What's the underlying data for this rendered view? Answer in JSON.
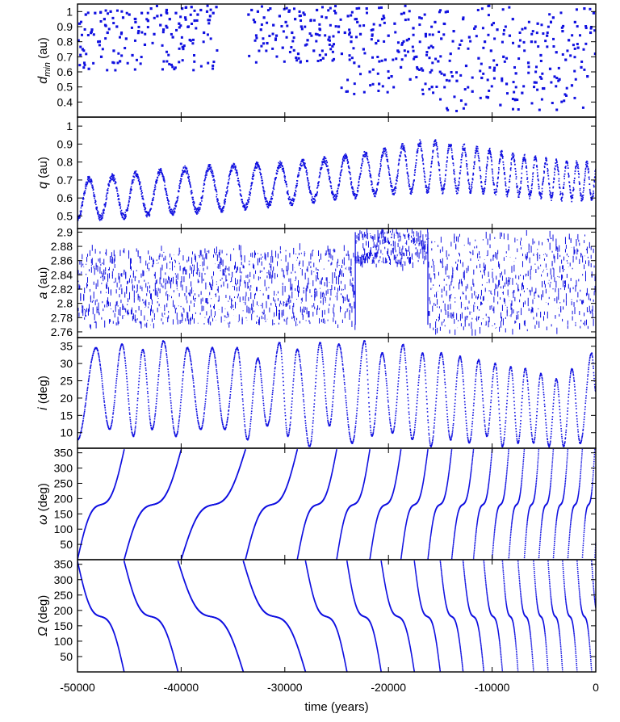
{
  "chart_data": {
    "type": "scatter",
    "color": "#1010e0",
    "x": {
      "label": "time (years)",
      "lim": [
        -50000,
        0
      ],
      "ticks": [
        -50000,
        -40000,
        -30000,
        -20000,
        -10000,
        0
      ],
      "tick_labels": [
        "-50000",
        "-40000",
        "-30000",
        "-20000",
        "-10000",
        "0"
      ]
    },
    "panels": [
      {
        "name": "dmin",
        "ylabel_main": "d",
        "ylabel_sub": "min",
        "ylabel_unit": "(au)",
        "ylim": [
          0.3,
          1.05
        ],
        "ticks": [
          0.4,
          0.5,
          0.6,
          0.7,
          0.8,
          0.9,
          1
        ],
        "tick_labels": [
          "0.4",
          "0.5",
          "0.6",
          "0.7",
          "0.8",
          "0.9",
          "1"
        ],
        "style": "sparse-squares",
        "points": [
          [
            -49800,
            0.92
          ],
          [
            -49500,
            0.75
          ],
          [
            -49200,
            0.98
          ],
          [
            -48900,
            0.62
          ],
          [
            -48600,
            0.88
          ],
          [
            -48300,
            0.99
          ],
          [
            -48000,
            0.8
          ],
          [
            -47700,
            0.7
          ],
          [
            -47400,
            0.95
          ],
          [
            -47100,
            0.86
          ],
          [
            -46800,
            1.0
          ],
          [
            -46500,
            0.74
          ],
          [
            -46200,
            0.9
          ],
          [
            -45900,
            0.67
          ],
          [
            -45600,
            0.96
          ],
          [
            -45300,
            0.82
          ],
          [
            -45000,
            0.98
          ],
          [
            -44700,
            0.71
          ],
          [
            -44400,
            0.93
          ],
          [
            -44100,
            0.87
          ],
          [
            -43800,
            0.99
          ],
          [
            -43500,
            0.78
          ],
          [
            -43200,
            0.94
          ],
          [
            -42900,
            1.02
          ],
          [
            -42600,
            0.85
          ],
          [
            -42300,
            0.97
          ],
          [
            -42000,
            0.91
          ],
          [
            -41700,
            0.88
          ],
          [
            -41400,
            1.01
          ],
          [
            -41100,
            0.95
          ],
          [
            -40800,
            0.83
          ],
          [
            -40500,
            0.99
          ],
          [
            -40200,
            0.92
          ],
          [
            -39900,
            1.02
          ],
          [
            -39600,
            0.96
          ],
          [
            -39300,
            0.9
          ],
          [
            -39000,
            1.03
          ],
          [
            -38700,
            0.94
          ],
          [
            -38400,
            0.98
          ],
          [
            -38100,
            1.01
          ],
          [
            -37800,
            0.86
          ],
          [
            -37500,
            1.0
          ],
          [
            -37200,
            0.97
          ],
          [
            -36900,
            0.99
          ],
          [
            -36600,
            1.03
          ],
          [
            -33500,
            0.98
          ],
          [
            -33200,
            1.01
          ],
          [
            -32900,
            0.93
          ],
          [
            -32600,
            1.0
          ],
          [
            -32300,
            0.88
          ],
          [
            -32000,
            0.96
          ],
          [
            -31700,
            0.79
          ],
          [
            -31400,
            1.02
          ],
          [
            -31100,
            0.91
          ],
          [
            -30800,
            0.84
          ],
          [
            -30500,
            0.97
          ],
          [
            -30200,
            0.76
          ],
          [
            -29900,
            0.93
          ],
          [
            -29600,
            1.0
          ],
          [
            -29300,
            0.86
          ],
          [
            -29000,
            0.95
          ],
          [
            -28700,
            0.72
          ],
          [
            -28400,
            0.9
          ],
          [
            -28100,
            0.98
          ],
          [
            -27800,
            0.81
          ],
          [
            -27500,
            0.94
          ],
          [
            -27200,
            0.74
          ],
          [
            -26900,
            1.01
          ],
          [
            -26600,
            0.88
          ],
          [
            -26300,
            0.69
          ],
          [
            -26000,
            0.96
          ],
          [
            -25700,
            0.83
          ],
          [
            -25400,
            0.77
          ],
          [
            -25100,
            0.99
          ],
          [
            -24800,
            0.9
          ],
          [
            -24500,
            0.72
          ],
          [
            -24200,
            0.86
          ],
          [
            -23900,
            0.97
          ],
          [
            -23600,
            0.8
          ],
          [
            -23300,
            0.66
          ],
          [
            -23000,
            0.93
          ],
          [
            -22700,
            0.85
          ],
          [
            -22400,
            0.75
          ],
          [
            -22100,
            1.02
          ],
          [
            -21800,
            0.6
          ],
          [
            -21500,
            0.88
          ],
          [
            -21200,
            0.79
          ],
          [
            -20900,
            0.52
          ],
          [
            -20600,
            0.95
          ],
          [
            -20300,
            0.68
          ],
          [
            -20000,
            0.84
          ],
          [
            -19700,
            0.57
          ],
          [
            -19400,
            0.92
          ],
          [
            -19100,
            0.74
          ],
          [
            -18800,
            0.63
          ],
          [
            -18500,
            0.99
          ],
          [
            -18200,
            0.81
          ],
          [
            -17900,
            0.55
          ],
          [
            -17600,
            0.89
          ],
          [
            -17300,
            0.7
          ],
          [
            -17000,
            0.96
          ],
          [
            -16700,
            0.61
          ],
          [
            -16400,
            0.85
          ],
          [
            -16100,
            0.76
          ],
          [
            -15800,
            0.5
          ],
          [
            -15500,
            0.93
          ],
          [
            -15200,
            0.67
          ],
          [
            -14900,
            0.82
          ],
          [
            -14600,
            0.58
          ],
          [
            -14300,
            1.0
          ],
          [
            -14000,
            0.72
          ],
          [
            -13700,
            0.87
          ],
          [
            -13400,
            0.54
          ],
          [
            -13100,
            0.78
          ],
          [
            -12800,
            0.95
          ],
          [
            -12500,
            0.64
          ],
          [
            -12200,
            0.83
          ],
          [
            -11900,
            0.47
          ],
          [
            -11600,
            0.9
          ],
          [
            -11300,
            0.69
          ],
          [
            -11000,
            0.56
          ],
          [
            -10700,
            0.8
          ],
          [
            -10400,
            0.43
          ],
          [
            -10100,
            0.74
          ],
          [
            -9800,
            0.61
          ],
          [
            -9500,
            0.88
          ],
          [
            -9200,
            0.38
          ],
          [
            -8900,
            0.7
          ],
          [
            -8600,
            0.52
          ],
          [
            -8300,
            0.84
          ],
          [
            -8000,
            0.95
          ],
          [
            -7700,
            0.59
          ],
          [
            -7400,
            0.77
          ],
          [
            -7100,
            0.46
          ],
          [
            -6800,
            0.89
          ],
          [
            -6500,
            0.66
          ],
          [
            -6200,
            0.8
          ],
          [
            -5900,
            0.53
          ],
          [
            -5600,
            0.92
          ],
          [
            -5300,
            0.71
          ],
          [
            -5000,
            0.49
          ],
          [
            -4700,
            0.84
          ],
          [
            -4400,
            0.62
          ],
          [
            -4100,
            0.96
          ],
          [
            -3800,
            0.73
          ],
          [
            -3500,
            0.55
          ],
          [
            -3200,
            0.87
          ],
          [
            -2900,
            0.68
          ],
          [
            -2600,
            0.81
          ],
          [
            -2300,
            0.51
          ],
          [
            -2000,
            0.93
          ],
          [
            -1700,
            0.76
          ],
          [
            -1400,
            0.63
          ],
          [
            -1100,
            1.02
          ],
          [
            -800,
            0.57
          ],
          [
            -500,
            0.86
          ],
          [
            -200,
            0.99
          ],
          [
            -50,
            0.72
          ]
        ]
      },
      {
        "name": "q",
        "ylabel_main": "q",
        "ylabel_sub": "",
        "ylabel_unit": "(au)",
        "ylim": [
          0.43,
          1.05
        ],
        "ticks": [
          0.5,
          0.6,
          0.7,
          0.8,
          0.9,
          1
        ],
        "tick_labels": [
          "0.5",
          "0.6",
          "0.7",
          "0.8",
          "0.9",
          "1"
        ],
        "style": "oscillation",
        "envelope": {
          "x": [
            -50000,
            -40000,
            -35000,
            -30000,
            -25000,
            -20000,
            -16000,
            -12000,
            -8000,
            -4000,
            0
          ],
          "center": [
            0.59,
            0.64,
            0.66,
            0.68,
            0.71,
            0.75,
            0.78,
            0.76,
            0.73,
            0.7,
            0.69
          ],
          "amp": [
            0.11,
            0.12,
            0.12,
            0.11,
            0.11,
            0.12,
            0.14,
            0.12,
            0.11,
            0.1,
            0.1
          ],
          "period": [
            2200,
            2400,
            2300,
            2200,
            2000,
            1800,
            1500,
            1250,
            1100,
            1000,
            950
          ]
        }
      },
      {
        "name": "a",
        "ylabel_main": "a",
        "ylabel_sub": "",
        "ylabel_unit": "(au)",
        "ylim": [
          2.752,
          2.905
        ],
        "ticks": [
          2.76,
          2.78,
          2.8,
          2.82,
          2.84,
          2.86,
          2.88,
          2.9
        ],
        "tick_labels": [
          "2.76",
          "2.78",
          "2.8",
          "2.82",
          "2.84",
          "2.86",
          "2.88",
          "2.9"
        ],
        "style": "bands",
        "regimes": [
          {
            "x": [
              -50000,
              -23200
            ],
            "ymin": 2.77,
            "ymax": 2.875
          },
          {
            "x": [
              -23200,
              -16200
            ],
            "ymin": 2.855,
            "ymax": 2.9
          },
          {
            "x": [
              -16200,
              0
            ],
            "ymin": 2.762,
            "ymax": 2.895
          }
        ]
      },
      {
        "name": "i",
        "ylabel_main": "i",
        "ylabel_sub": "",
        "ylabel_unit": "(deg)",
        "ylim": [
          5.5,
          37.5
        ],
        "ticks": [
          10,
          15,
          20,
          25,
          30,
          35
        ],
        "tick_labels": [
          "10",
          "15",
          "20",
          "25",
          "30",
          "35"
        ],
        "style": "cycles",
        "peaks": [
          [
            -48200,
            34.5
          ],
          [
            -45700,
            35.5
          ],
          [
            -43700,
            34
          ],
          [
            -41700,
            36.5
          ],
          [
            -39400,
            34.5
          ],
          [
            -37000,
            34.5
          ],
          [
            -34600,
            34.5
          ],
          [
            -32600,
            31.5
          ],
          [
            -30500,
            36
          ],
          [
            -28800,
            34
          ],
          [
            -26600,
            36
          ],
          [
            -24800,
            35.5
          ],
          [
            -22300,
            36.5
          ],
          [
            -20600,
            33
          ],
          [
            -18600,
            35.5
          ],
          [
            -16700,
            33
          ],
          [
            -14900,
            33
          ],
          [
            -13100,
            32
          ],
          [
            -11300,
            31
          ],
          [
            -9700,
            30
          ],
          [
            -8200,
            29
          ],
          [
            -6800,
            28.5
          ],
          [
            -5300,
            27
          ],
          [
            -3800,
            25.5
          ],
          [
            -2300,
            28.5
          ],
          [
            -400,
            33
          ]
        ],
        "minima": [
          [
            -50000,
            8
          ],
          [
            -46900,
            11
          ],
          [
            -44600,
            9
          ],
          [
            -42800,
            11
          ],
          [
            -40500,
            9
          ],
          [
            -38100,
            11
          ],
          [
            -35800,
            11
          ],
          [
            -33600,
            8
          ],
          [
            -31700,
            12
          ],
          [
            -29700,
            9
          ],
          [
            -27600,
            6
          ],
          [
            -25700,
            12
          ],
          [
            -23500,
            7
          ],
          [
            -21600,
            9
          ],
          [
            -19600,
            10
          ],
          [
            -17700,
            8
          ],
          [
            -15900,
            6
          ],
          [
            -14000,
            8
          ],
          [
            -12200,
            7
          ],
          [
            -10500,
            9
          ],
          [
            -9000,
            6
          ],
          [
            -7500,
            7
          ],
          [
            -6000,
            7
          ],
          [
            -4500,
            6
          ],
          [
            -3100,
            6
          ],
          [
            -1500,
            7
          ],
          [
            0,
            22
          ]
        ]
      },
      {
        "name": "omega",
        "ylabel_main": "ω",
        "ylabel_sub": "",
        "ylabel_unit": "(deg)",
        "ylim": [
          0,
          365
        ],
        "ticks": [
          50,
          100,
          150,
          200,
          250,
          300,
          350
        ],
        "tick_labels": [
          "50",
          "100",
          "150",
          "200",
          "250",
          "300",
          "350"
        ],
        "style": "ramps-up",
        "wraps": [
          -50000,
          -45500,
          -40000,
          -33800,
          -28800,
          -25000,
          -21800,
          -18800,
          -16200,
          -13900,
          -11800,
          -10000,
          -8400,
          -6900,
          -5500,
          -4100,
          -2700,
          -1300,
          -100
        ]
      },
      {
        "name": "Omega",
        "ylabel_main": "Ω",
        "ylabel_sub": "",
        "ylabel_unit": "(deg)",
        "ylim": [
          0,
          365
        ],
        "ticks": [
          50,
          100,
          150,
          200,
          250,
          300,
          350
        ],
        "tick_labels": [
          "50",
          "100",
          "150",
          "200",
          "250",
          "300",
          "350"
        ],
        "style": "ramps-down",
        "wraps": [
          -50000,
          -45500,
          -40300,
          -34000,
          -28000,
          -24000,
          -20700,
          -17500,
          -15000,
          -12800,
          -10800,
          -9000,
          -7500,
          -6000,
          -4600,
          -3200,
          -1800,
          -400
        ]
      }
    ]
  }
}
